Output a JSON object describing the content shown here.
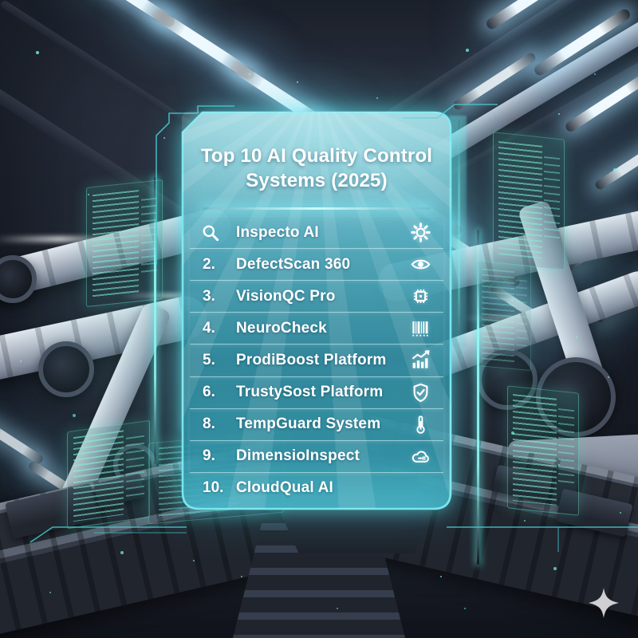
{
  "panel": {
    "title": "Top 10 AI Quality Control Systems (2025)",
    "items": [
      {
        "rank": "",
        "rank_icon": "magnifier-icon",
        "name": "Inspecto AI",
        "icon": "gear-icon"
      },
      {
        "rank": "2.",
        "rank_icon": "",
        "name": "DefectScan 360",
        "icon": "eye-icon"
      },
      {
        "rank": "3.",
        "rank_icon": "",
        "name": "VisionQC Pro",
        "icon": "chip-icon"
      },
      {
        "rank": "4.",
        "rank_icon": "",
        "name": "NeuroCheck",
        "icon": "barcode-icon"
      },
      {
        "rank": "5.",
        "rank_icon": "",
        "name": "ProdiBoost Platform",
        "icon": "chart-icon"
      },
      {
        "rank": "6.",
        "rank_icon": "",
        "name": "TrustySost Platform",
        "icon": "shield-check-icon"
      },
      {
        "rank": "8.",
        "rank_icon": "",
        "name": "TempGuard System",
        "icon": "thermometer-icon"
      },
      {
        "rank": "9.",
        "rank_icon": "",
        "name": "DimensioInspect",
        "icon": "cloud-measure-icon"
      },
      {
        "rank": "10.",
        "rank_icon": "",
        "name": "CloudQual AI",
        "icon": ""
      }
    ]
  },
  "decor": {
    "sparkle_icon": "four-point-star"
  },
  "colors": {
    "accent_cyan": "#6ee4ec",
    "holo_green": "#7fe8c8",
    "panel_teal_top": "#9fd8e0",
    "panel_teal_bottom": "#2f8196",
    "background_dark": "#242936",
    "text": "#ffffff",
    "sparkle": "#d9d9dd"
  }
}
